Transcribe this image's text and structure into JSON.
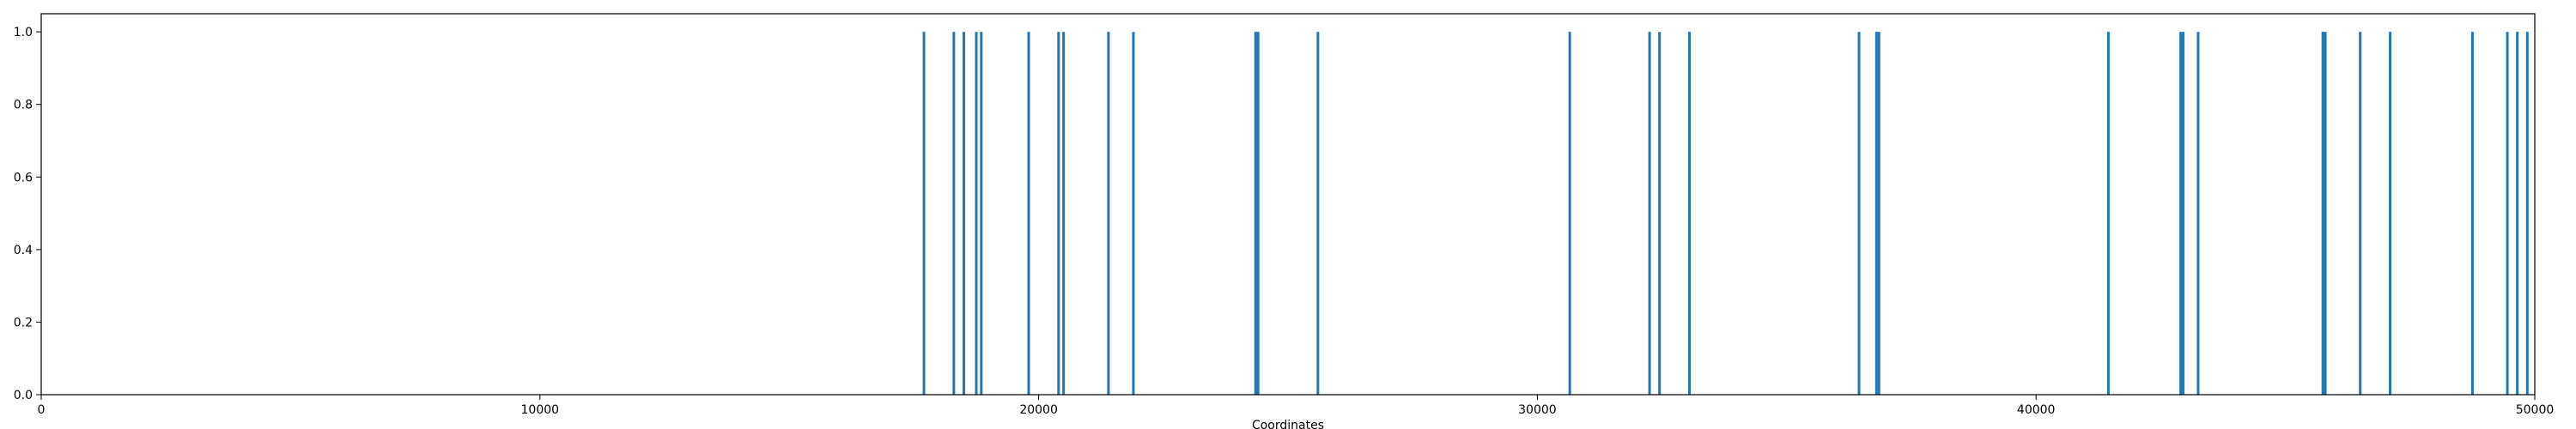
{
  "chart_data": {
    "type": "bar",
    "title": "",
    "xlabel": "Coordinates",
    "ylabel": "",
    "xlim": [
      0,
      50000
    ],
    "ylim": [
      0,
      1.05
    ],
    "x_ticks": [
      0,
      10000,
      20000,
      30000,
      40000,
      50000
    ],
    "y_ticks": [
      0.0,
      0.2,
      0.4,
      0.6,
      0.8,
      1.0
    ],
    "x_tick_labels": [
      "0",
      "10000",
      "20000",
      "30000",
      "40000",
      "50000"
    ],
    "y_tick_labels": [
      "0.0",
      "0.2",
      "0.4",
      "0.6",
      "0.8",
      "1.0"
    ],
    "grid": false,
    "color": "#1f77b4",
    "x": [
      17700,
      18300,
      18500,
      18750,
      18850,
      19800,
      20400,
      20500,
      21400,
      21900,
      24350,
      24400,
      25600,
      30650,
      32250,
      32450,
      33050,
      36450,
      36800,
      36850,
      41450,
      42900,
      42950,
      43250,
      45750,
      45800,
      46500,
      47100,
      48750,
      49450,
      49650,
      49850
    ],
    "values": [
      1,
      1,
      1,
      1,
      1,
      1,
      1,
      1,
      1,
      1,
      1,
      1,
      1,
      1,
      1,
      1,
      1,
      1,
      1,
      1,
      1,
      1,
      1,
      1,
      1,
      1,
      1,
      1,
      1,
      1,
      1,
      1
    ]
  }
}
